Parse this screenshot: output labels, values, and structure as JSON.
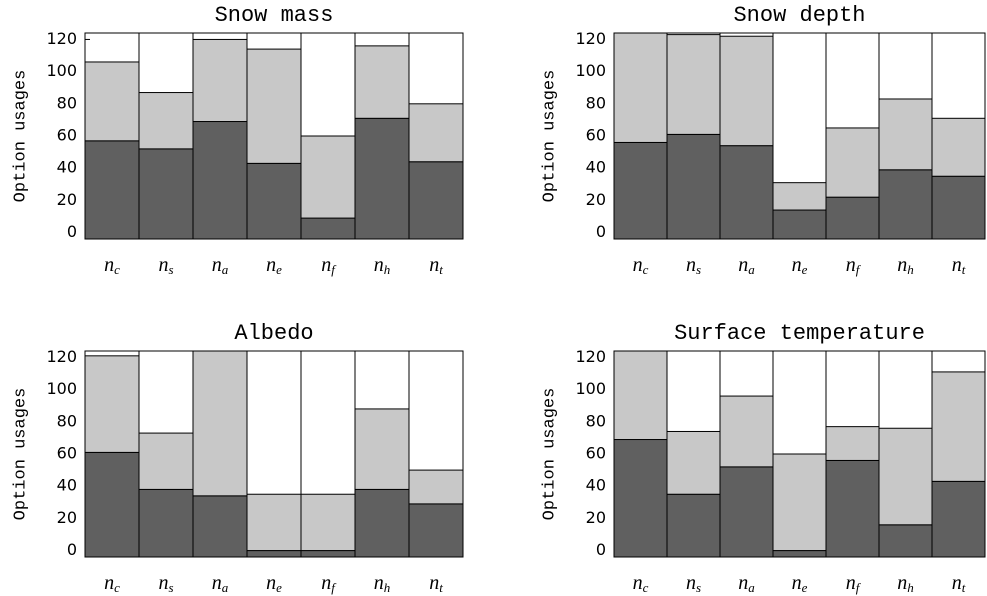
{
  "chart_data": [
    {
      "type": "stacked-bar",
      "title": "Snow mass",
      "ylabel": "Option usages",
      "categories": [
        {
          "symbol": "n",
          "sub": "c"
        },
        {
          "symbol": "n",
          "sub": "s"
        },
        {
          "symbol": "n",
          "sub": "a"
        },
        {
          "symbol": "n",
          "sub": "e"
        },
        {
          "symbol": "n",
          "sub": "f"
        },
        {
          "symbol": "n",
          "sub": "h"
        },
        {
          "symbol": "n",
          "sub": "t"
        }
      ],
      "series": [
        {
          "color": "#606060",
          "values": [
            57,
            52,
            69,
            43,
            9,
            71,
            44
          ]
        },
        {
          "color": "#c8c8c8",
          "values": [
            49,
            35,
            51,
            71,
            51,
            45,
            36
          ]
        }
      ],
      "ylim": [
        -4,
        124
      ],
      "yticks": [
        0,
        20,
        40,
        60,
        80,
        100,
        120
      ]
    },
    {
      "type": "stacked-bar",
      "title": "Snow depth",
      "ylabel": "Option usages",
      "categories": [
        {
          "symbol": "n",
          "sub": "c"
        },
        {
          "symbol": "n",
          "sub": "s"
        },
        {
          "symbol": "n",
          "sub": "a"
        },
        {
          "symbol": "n",
          "sub": "e"
        },
        {
          "symbol": "n",
          "sub": "f"
        },
        {
          "symbol": "n",
          "sub": "h"
        },
        {
          "symbol": "n",
          "sub": "t"
        }
      ],
      "series": [
        {
          "color": "#606060",
          "values": [
            56,
            61,
            54,
            14,
            22,
            39,
            35
          ]
        },
        {
          "color": "#c8c8c8",
          "values": [
            68,
            62,
            68,
            17,
            43,
            44,
            36
          ]
        }
      ],
      "ylim": [
        -4,
        124
      ],
      "yticks": [
        0,
        20,
        40,
        60,
        80,
        100,
        120
      ]
    },
    {
      "type": "stacked-bar",
      "title": "Albedo",
      "ylabel": "Option usages",
      "categories": [
        {
          "symbol": "n",
          "sub": "c"
        },
        {
          "symbol": "n",
          "sub": "s"
        },
        {
          "symbol": "n",
          "sub": "a"
        },
        {
          "symbol": "n",
          "sub": "e"
        },
        {
          "symbol": "n",
          "sub": "f"
        },
        {
          "symbol": "n",
          "sub": "h"
        },
        {
          "symbol": "n",
          "sub": "t"
        }
      ],
      "series": [
        {
          "color": "#606060",
          "values": [
            61,
            38,
            34,
            0,
            0,
            38,
            29
          ]
        },
        {
          "color": "#c8c8c8",
          "values": [
            60,
            35,
            90,
            35,
            35,
            50,
            21
          ]
        }
      ],
      "ylim": [
        -4,
        124
      ],
      "yticks": [
        0,
        20,
        40,
        60,
        80,
        100,
        120
      ]
    },
    {
      "type": "stacked-bar",
      "title": "Surface temperature",
      "ylabel": "Option usages",
      "categories": [
        {
          "symbol": "n",
          "sub": "c"
        },
        {
          "symbol": "n",
          "sub": "s"
        },
        {
          "symbol": "n",
          "sub": "a"
        },
        {
          "symbol": "n",
          "sub": "e"
        },
        {
          "symbol": "n",
          "sub": "f"
        },
        {
          "symbol": "n",
          "sub": "h"
        },
        {
          "symbol": "n",
          "sub": "t"
        }
      ],
      "series": [
        {
          "color": "#606060",
          "values": [
            69,
            35,
            52,
            0,
            56,
            16,
            43
          ]
        },
        {
          "color": "#c8c8c8",
          "values": [
            55,
            39,
            44,
            60,
            21,
            60,
            68
          ]
        }
      ],
      "ylim": [
        -4,
        124
      ],
      "yticks": [
        0,
        20,
        40,
        60,
        80,
        100,
        120
      ]
    }
  ]
}
